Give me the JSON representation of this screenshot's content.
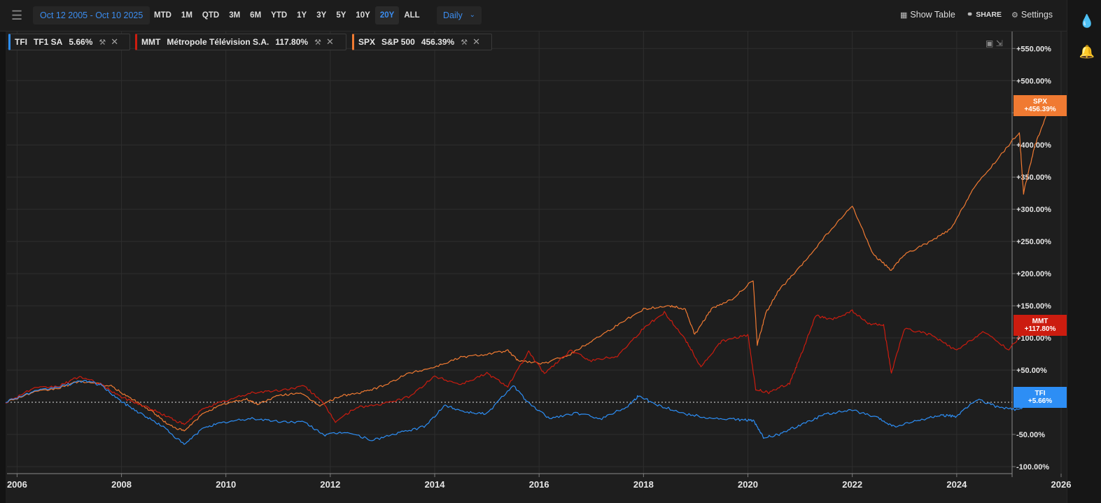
{
  "toolbar": {
    "date_range": "Oct 12 2005 - Oct 10 2025",
    "ranges": [
      "MTD",
      "1M",
      "QTD",
      "3M",
      "6M",
      "YTD",
      "1Y",
      "3Y",
      "5Y",
      "10Y",
      "20Y",
      "ALL"
    ],
    "active_range": "20Y",
    "interval": "Daily",
    "show_table": "Show Table",
    "share": "SHARE",
    "settings": "Settings"
  },
  "colors": {
    "tfi": "#2d8ef5",
    "mmt": "#cc1c0f",
    "spx": "#f07a32",
    "background": "#1e1e1e",
    "grid": "#2e2e2e"
  },
  "chart_data": {
    "type": "line",
    "x_unit": "year",
    "xlim": [
      2005.78,
      2026.0
    ],
    "ylim": [
      -100,
      560
    ],
    "y_ticks": [
      -100,
      -50,
      50,
      100,
      150,
      200,
      250,
      300,
      350,
      400,
      450,
      500,
      550
    ],
    "y_tick_labels": [
      "-100.00%",
      "-50.00%",
      "+50.00%",
      "+100.00%",
      "+150.00%",
      "+200.00%",
      "+250.00%",
      "+300.00%",
      "+350.00%",
      "+400.00%",
      "+450.00%",
      "+500.00%",
      "+550.00%"
    ],
    "x_ticks": [
      2006,
      2008,
      2010,
      2012,
      2014,
      2016,
      2018,
      2020,
      2022,
      2024,
      2026
    ],
    "x_tick_labels": [
      "2006",
      "2008",
      "2010",
      "2012",
      "2014",
      "2016",
      "2018",
      "2020",
      "2022",
      "2024",
      "2026"
    ],
    "baseline": 0,
    "grid": true,
    "legend_placement": "top-left",
    "series": [
      {
        "key": "tfi",
        "ticker": "TFI",
        "name": "TF1 SA",
        "change": "5.66%",
        "tag": "+5.66%",
        "x": [
          2005.78,
          2006.3,
          2006.8,
          2007.3,
          2007.6,
          2008.0,
          2008.4,
          2008.8,
          2009.2,
          2009.6,
          2010.0,
          2010.5,
          2011.0,
          2011.5,
          2011.9,
          2012.3,
          2012.8,
          2013.3,
          2013.8,
          2014.2,
          2014.6,
          2015.0,
          2015.5,
          2015.8,
          2016.2,
          2016.7,
          2017.2,
          2017.7,
          2017.9,
          2018.3,
          2018.8,
          2019.3,
          2019.8,
          2020.1,
          2020.3,
          2020.6,
          2021.0,
          2021.5,
          2022.0,
          2022.5,
          2022.8,
          2023.3,
          2023.7,
          2024.0,
          2024.4,
          2024.8,
          2025.2,
          2025.5,
          2025.78
        ],
        "y": [
          1,
          16,
          24,
          34,
          27,
          1,
          -19,
          -38,
          -66,
          -38,
          -31,
          -25,
          -30,
          -31,
          -51,
          -46,
          -59,
          -48,
          -38,
          -5,
          -15,
          -18,
          27,
          -2,
          -25,
          -17,
          -25,
          -6,
          10,
          -5,
          -18,
          -25,
          -27,
          -28,
          -55,
          -50,
          -35,
          -18,
          -12,
          -25,
          -38,
          -28,
          -20,
          -22,
          5,
          -8,
          -12,
          5,
          6
        ]
      },
      {
        "key": "mmt",
        "ticker": "MMT",
        "name": "Métropole Télévision S.A.",
        "change": "117.80%",
        "tag": "+117.80%",
        "x": [
          2005.78,
          2006.3,
          2006.8,
          2007.2,
          2007.6,
          2008.0,
          2008.5,
          2008.9,
          2009.2,
          2009.6,
          2010.0,
          2010.5,
          2011.0,
          2011.5,
          2011.8,
          2012.1,
          2012.5,
          2013.0,
          2013.5,
          2014.0,
          2014.5,
          2015.0,
          2015.4,
          2015.8,
          2016.1,
          2016.6,
          2017.0,
          2017.5,
          2018.0,
          2018.4,
          2018.8,
          2019.1,
          2019.5,
          2020.0,
          2020.15,
          2020.4,
          2020.8,
          2021.0,
          2021.3,
          2021.6,
          2022.0,
          2022.3,
          2022.6,
          2022.75,
          2023.0,
          2023.5,
          2024.0,
          2024.5,
          2025.0,
          2025.5,
          2025.78
        ],
        "y": [
          0,
          21,
          25,
          40,
          28,
          8,
          -8,
          -23,
          -35,
          -8,
          2,
          15,
          18,
          25,
          5,
          -30,
          -8,
          -3,
          8,
          40,
          28,
          45,
          25,
          78,
          45,
          80,
          65,
          72,
          115,
          140,
          98,
          55,
          95,
          105,
          20,
          15,
          30,
          70,
          135,
          128,
          142,
          122,
          120,
          45,
          115,
          105,
          80,
          110,
          82,
          130,
          118
        ]
      },
      {
        "key": "spx",
        "ticker": "SPX",
        "name": "S&P 500",
        "change": "456.39%",
        "tag": "+456.39%",
        "x": [
          2005.78,
          2006.3,
          2006.8,
          2007.2,
          2007.8,
          2008.2,
          2008.6,
          2008.9,
          2009.2,
          2009.6,
          2010.0,
          2010.4,
          2010.6,
          2011.0,
          2011.4,
          2011.8,
          2012.2,
          2012.6,
          2013.0,
          2013.5,
          2014.0,
          2014.5,
          2015.0,
          2015.4,
          2015.6,
          2016.1,
          2016.6,
          2017.0,
          2017.5,
          2018.0,
          2018.5,
          2018.8,
          2018.98,
          2019.3,
          2019.7,
          2020.1,
          2020.18,
          2020.35,
          2020.6,
          2021.0,
          2021.5,
          2022.0,
          2022.4,
          2022.75,
          2023.0,
          2023.5,
          2023.9,
          2024.3,
          2024.8,
          2025.2,
          2025.28,
          2025.5,
          2025.78
        ],
        "y": [
          0,
          15,
          22,
          33,
          25,
          5,
          -15,
          -35,
          -45,
          -15,
          -2,
          5,
          -3,
          10,
          15,
          -5,
          10,
          15,
          25,
          45,
          55,
          70,
          75,
          80,
          65,
          60,
          75,
          95,
          120,
          145,
          150,
          145,
          105,
          145,
          160,
          190,
          90,
          140,
          175,
          210,
          260,
          305,
          230,
          205,
          230,
          250,
          270,
          330,
          380,
          420,
          325,
          400,
          460
        ]
      }
    ]
  }
}
